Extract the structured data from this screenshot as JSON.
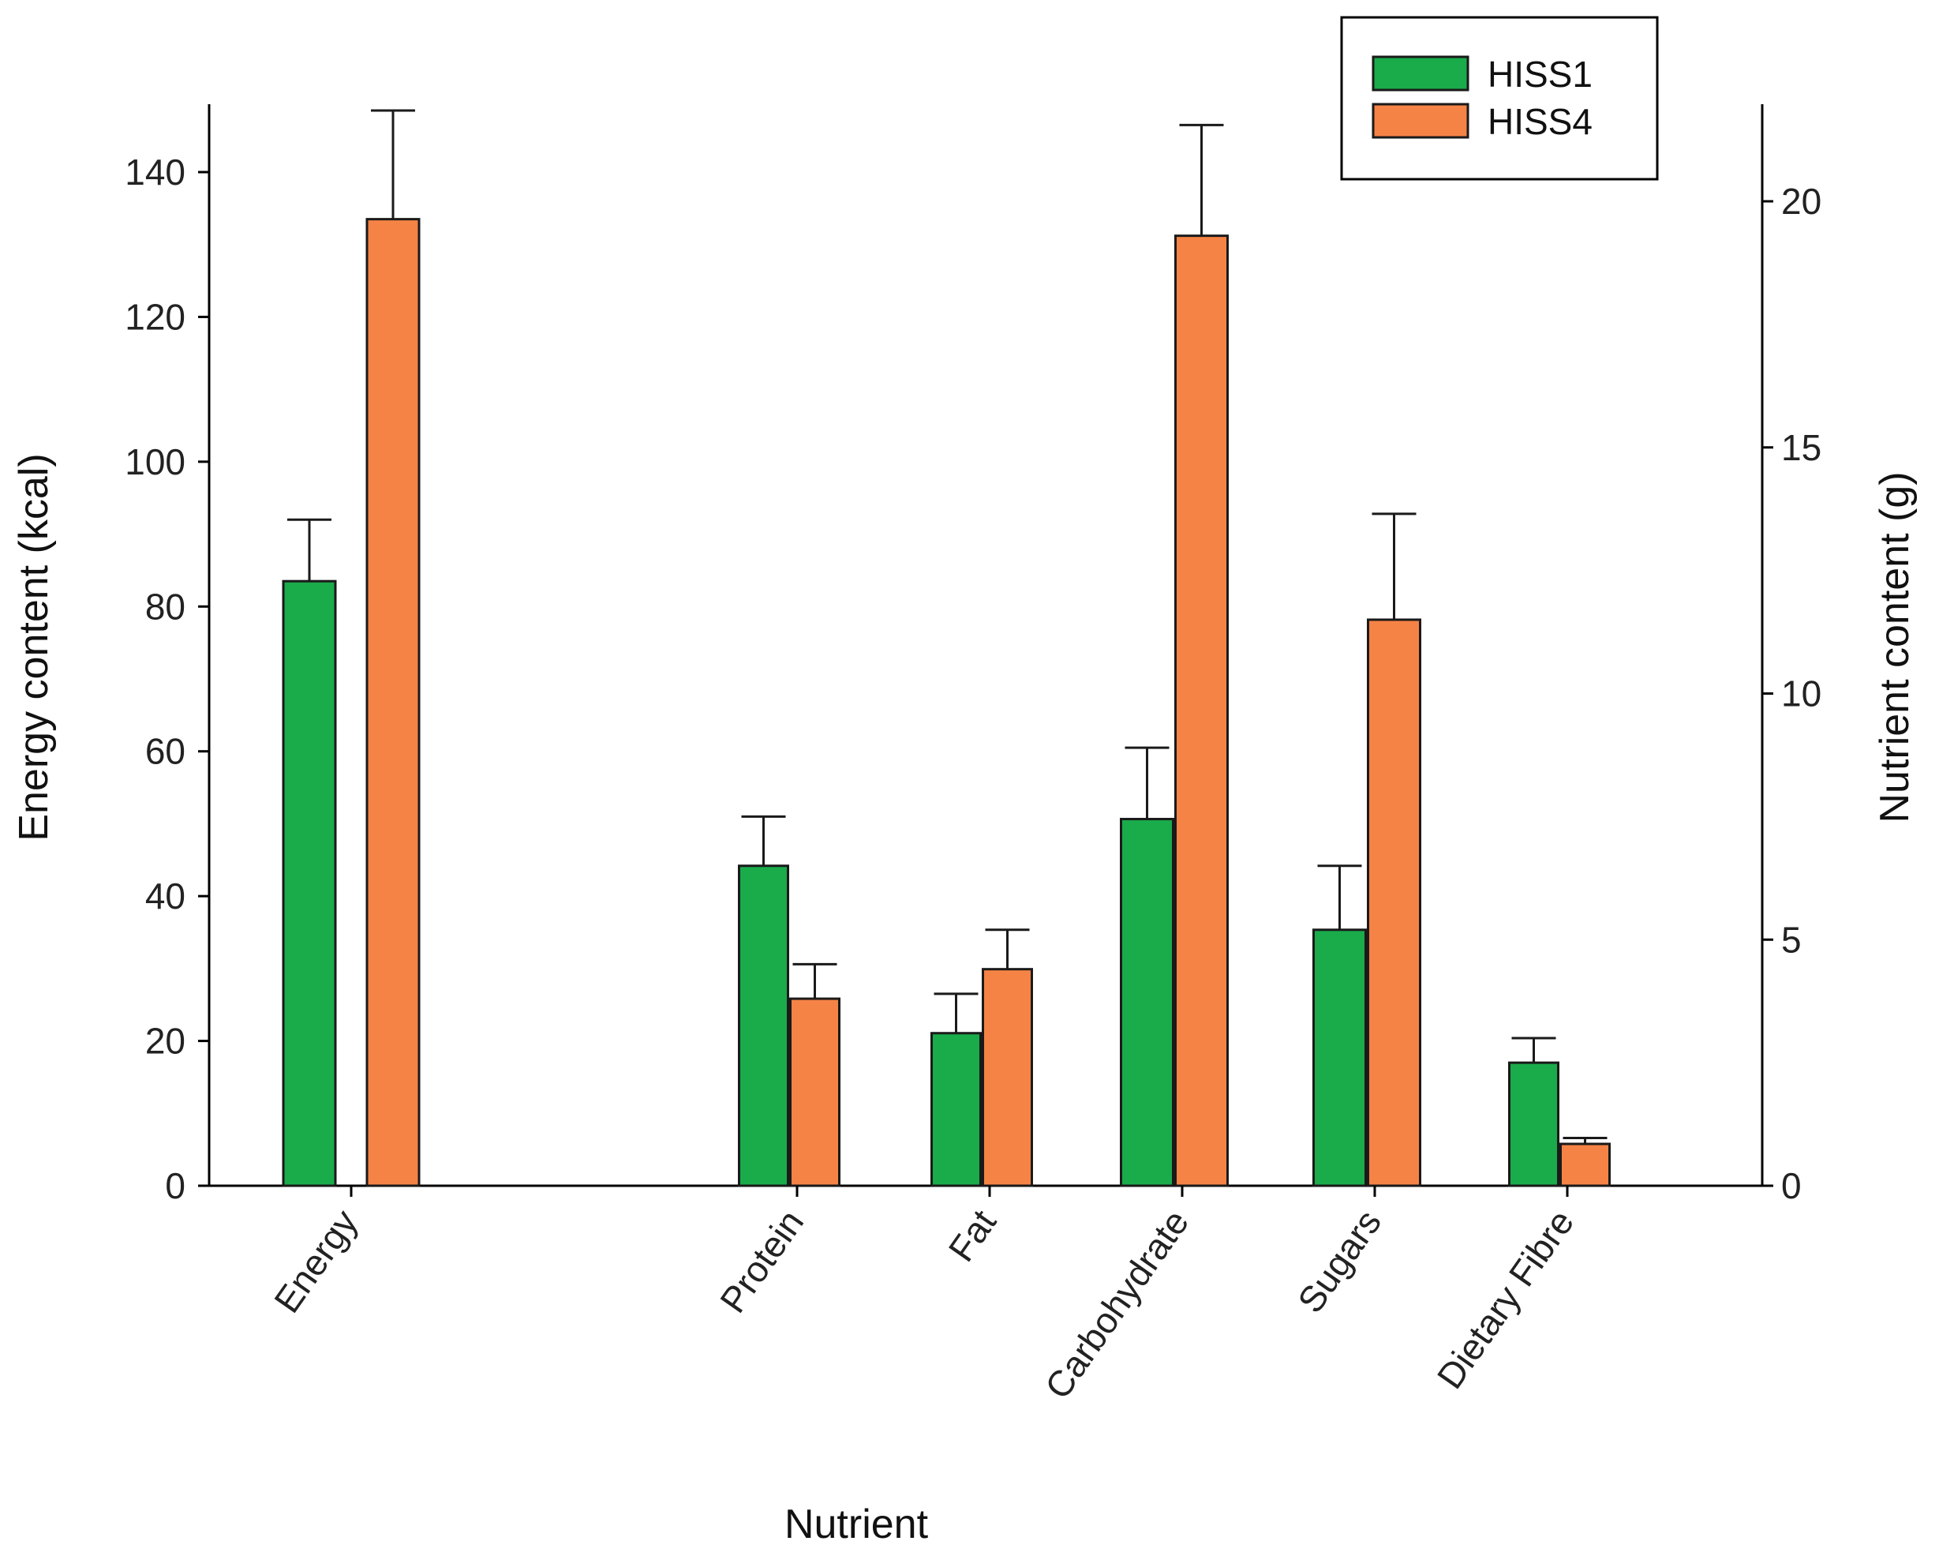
{
  "chart_data": {
    "type": "bar",
    "xlabel": "Nutrient",
    "ylabel_left": "Energy content (kcal)",
    "ylabel_right": "Nutrient content (g)",
    "ylim_left": [
      0,
      150
    ],
    "ylim_right": [
      0,
      22
    ],
    "yticks_left": [
      0,
      20,
      40,
      60,
      80,
      100,
      120,
      140
    ],
    "yticks_right": [
      0,
      5,
      10,
      15,
      20
    ],
    "categories": [
      "Energy",
      "Protein",
      "Fat",
      "Carbohydrate",
      "Sugars",
      "Dietary Fibre"
    ],
    "category_labels_as_printed": [
      "Energy",
      "Protein",
      "Fat",
      "Carbohydrate",
      "Sugars",
      "Dietary Fibre"
    ],
    "axis_for_category": [
      "left",
      "right",
      "right",
      "right",
      "right",
      "right"
    ],
    "series": [
      {
        "name": "HISS1",
        "color": "#1aab4b",
        "values": [
          83.5,
          6.5,
          3.1,
          7.45,
          5.2,
          2.5
        ],
        "errors": [
          8.5,
          1.0,
          0.8,
          1.45,
          1.3,
          0.5
        ]
      },
      {
        "name": "HISS4",
        "color": "#f58345",
        "values": [
          133.5,
          3.8,
          4.4,
          19.3,
          11.5,
          0.85
        ],
        "errors": [
          15.0,
          0.7,
          0.8,
          2.25,
          2.15,
          0.12
        ]
      }
    ],
    "legend_position": "top-right",
    "grid": false
  }
}
